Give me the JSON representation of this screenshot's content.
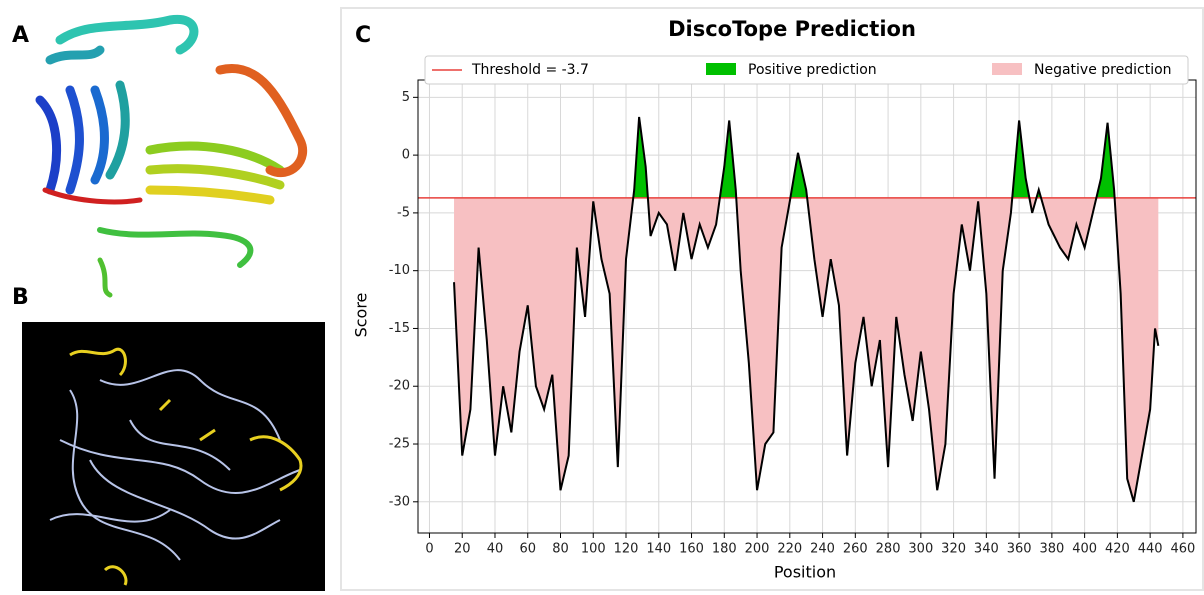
{
  "panel_labels": [
    "A",
    "B",
    "C"
  ],
  "chart_data": {
    "type": "line",
    "title": "DiscoTope Prediction",
    "x_label": "Position",
    "y_label": "Score",
    "x": [
      15,
      20,
      25,
      30,
      35,
      40,
      45,
      50,
      55,
      60,
      65,
      70,
      75,
      80,
      85,
      90,
      95,
      100,
      105,
      110,
      115,
      120,
      125,
      128,
      132,
      135,
      140,
      145,
      150,
      155,
      160,
      165,
      170,
      175,
      180,
      183,
      187,
      190,
      195,
      200,
      205,
      210,
      215,
      220,
      225,
      230,
      235,
      240,
      245,
      250,
      255,
      260,
      265,
      270,
      275,
      280,
      285,
      290,
      295,
      300,
      305,
      310,
      315,
      320,
      325,
      330,
      335,
      340,
      345,
      350,
      355,
      360,
      364,
      368,
      372,
      378,
      385,
      390,
      395,
      400,
      405,
      410,
      414,
      418,
      422,
      426,
      430,
      435,
      440,
      443,
      445
    ],
    "series": [
      {
        "name": "Score",
        "color": "#000000",
        "values": [
          -11,
          -26,
          -22,
          -8,
          -16,
          -26,
          -20,
          -24,
          -17,
          -13,
          -20,
          -22,
          -19,
          -29,
          -26,
          -8,
          -14,
          -4,
          -9,
          -12,
          -27,
          -9,
          -3,
          3.3,
          -1,
          -7,
          -5,
          -6,
          -10,
          -5,
          -9,
          -6,
          -8,
          -6,
          -1,
          3,
          -3,
          -10,
          -18,
          -29,
          -25,
          -24,
          -8,
          -4,
          0.2,
          -3,
          -9,
          -14,
          -9,
          -13,
          -26,
          -18,
          -14,
          -20,
          -16,
          -27,
          -14,
          -19,
          -23,
          -17,
          -22,
          -29,
          -25,
          -12,
          -6,
          -10,
          -4,
          -12,
          -28,
          -10,
          -5,
          3,
          -2,
          -5,
          -3,
          -6,
          -8,
          -9,
          -6,
          -8,
          -5,
          -2,
          2.8,
          -3,
          -12,
          -28,
          -30,
          -26,
          -22,
          -15,
          -16.5
        ]
      }
    ],
    "threshold": {
      "value": -3.7,
      "label": "Threshold = -3.7",
      "color": "#e8413c"
    },
    "positive": {
      "label": "Positive prediction",
      "color": "#00c000"
    },
    "negative": {
      "label": "Negative prediction",
      "color": "#f7c0c2"
    },
    "xlim": [
      -7,
      468
    ],
    "ylim": [
      -32.7,
      6.5
    ],
    "xticks": [
      0,
      20,
      40,
      60,
      80,
      100,
      120,
      140,
      160,
      180,
      200,
      220,
      240,
      260,
      280,
      300,
      320,
      340,
      360,
      380,
      400,
      420,
      440,
      460
    ],
    "yticks": [
      5,
      0,
      -5,
      -10,
      -15,
      -20,
      -25,
      -30
    ],
    "grid": true
  }
}
